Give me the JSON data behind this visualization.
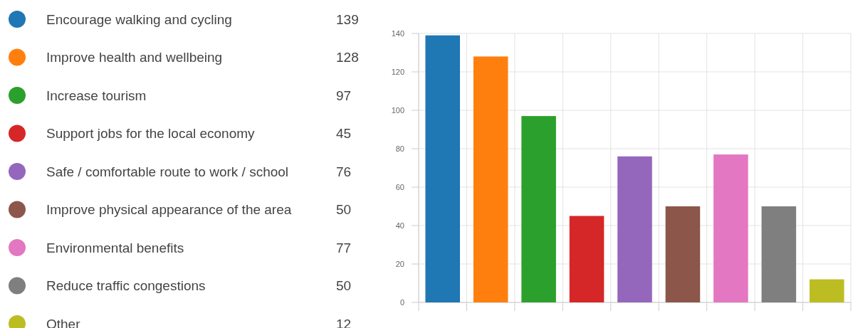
{
  "chart_data": {
    "type": "bar",
    "categories": [
      null
    ],
    "series": [
      {
        "name": "Encourage walking and cycling",
        "color": "#1f77b4",
        "values": [
          139
        ]
      },
      {
        "name": "Improve health and wellbeing",
        "color": "#ff7f0e",
        "values": [
          128
        ]
      },
      {
        "name": "Increase tourism",
        "color": "#2ca02c",
        "values": [
          97
        ]
      },
      {
        "name": "Support jobs for the local economy",
        "color": "#d62728",
        "values": [
          45
        ]
      },
      {
        "name": "Safe / comfortable route to work / school",
        "color": "#9467bd",
        "values": [
          76
        ]
      },
      {
        "name": "Improve physical appearance of the area",
        "color": "#8c564b",
        "values": [
          50
        ]
      },
      {
        "name": "Environmental benefits",
        "color": "#e377c2",
        "values": [
          77
        ]
      },
      {
        "name": "Reduce traffic congestions",
        "color": "#7f7f7f",
        "values": [
          50
        ]
      },
      {
        "name": "Other",
        "color": "#bcbd22",
        "values": [
          12
        ]
      }
    ],
    "ylim": [
      0,
      140
    ],
    "yticks": [
      0,
      20,
      40,
      60,
      80,
      100,
      120,
      140
    ],
    "grid": true,
    "legend": "left",
    "tick_labels": "y",
    "annotations": [
      "139",
      "128",
      "97",
      "45",
      "76",
      "50",
      "77",
      "50",
      "12"
    ]
  }
}
